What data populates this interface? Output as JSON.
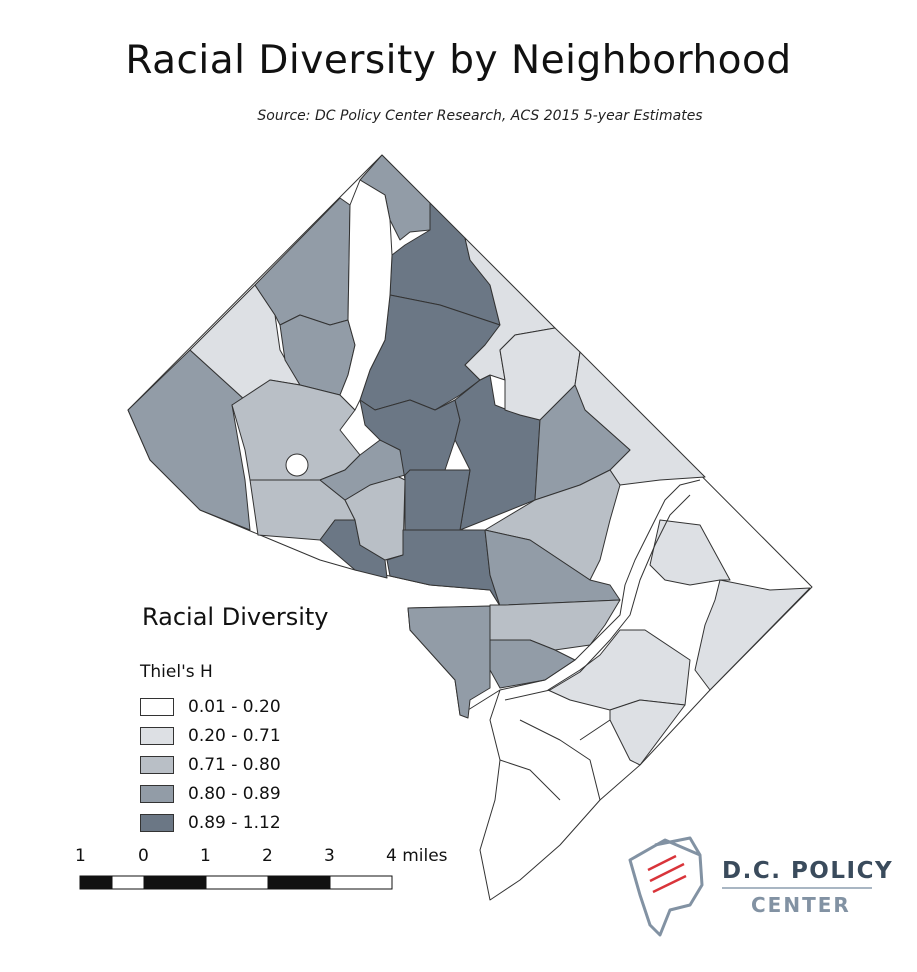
{
  "header": {
    "title": "Racial Diversity by Neighborhood",
    "subtitle": "Source: DC Policy Center Research, ACS 2015 5-year Estimates"
  },
  "legend": {
    "title": "Racial Diversity",
    "subtitle": "Thiel's H",
    "classes": [
      {
        "label": "0.01 - 0.20",
        "color": "#ffffff"
      },
      {
        "label": "0.20 - 0.71",
        "color": "#dde0e4"
      },
      {
        "label": "0.71 - 0.80",
        "color": "#b9bfc6"
      },
      {
        "label": "0.80 - 0.89",
        "color": "#929ca7"
      },
      {
        "label": "0.89 - 1.12",
        "color": "#6b7785"
      }
    ]
  },
  "scale_bar": {
    "labels": [
      "1",
      "0",
      "1",
      "2",
      "3",
      "4 miles"
    ]
  },
  "logo": {
    "line1": "D.C. POLICY",
    "line2": "CENTER",
    "accent_color": "#d9343a",
    "icon": "dc-map-document-icon"
  }
}
